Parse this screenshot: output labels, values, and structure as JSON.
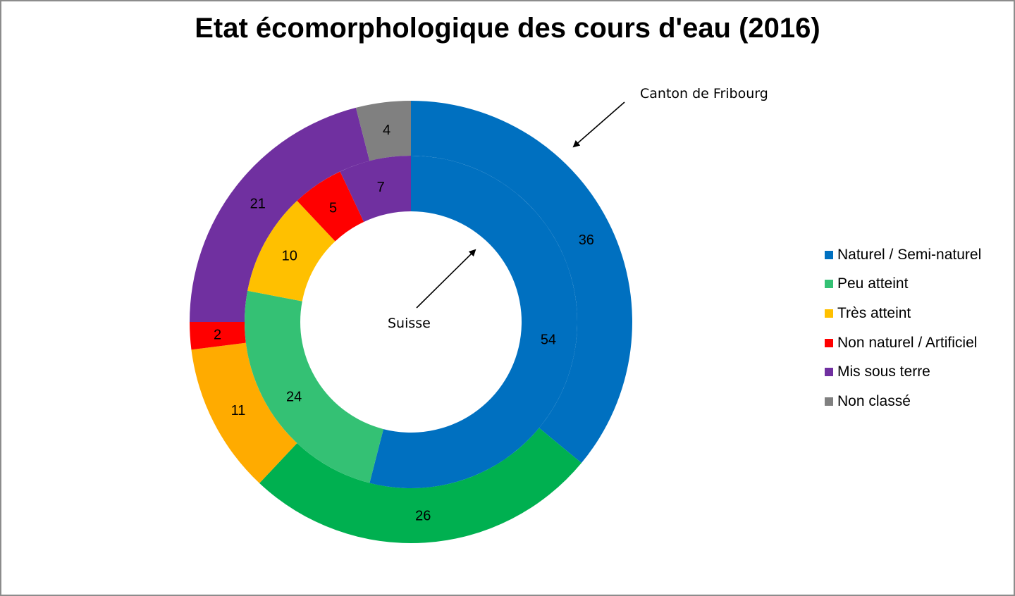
{
  "title": "Etat écomorphologique des cours d'eau (2016)",
  "annotations": {
    "outer": "Canton de Fribourg",
    "inner": "Suisse"
  },
  "legend": [
    {
      "label": "Naturel / Semi-naturel",
      "color": "#0070c0"
    },
    {
      "label": "Peu atteint",
      "color": "#34c174"
    },
    {
      "label": "Très atteint",
      "color": "#ffc000"
    },
    {
      "label": "Non naturel / Artificiel",
      "color": "#ff0000"
    },
    {
      "label": "Mis sous terre",
      "color": "#7030a0"
    },
    {
      "label": "Non classé",
      "color": "#808080"
    }
  ],
  "chart_data": {
    "type": "doughnut",
    "title": "Etat écomorphologique des cours d'eau (2016)",
    "categories": [
      "Naturel / Semi-naturel",
      "Peu atteint",
      "Très atteint",
      "Non naturel / Artificiel",
      "Mis sous terre",
      "Non classé"
    ],
    "series": [
      {
        "name": "Canton de Fribourg",
        "ring": "outer",
        "values": [
          36,
          26,
          11,
          2,
          21,
          4
        ],
        "colors": [
          "#0070c0",
          "#00b050",
          "#ffab00",
          "#ff0000",
          "#7030a0",
          "#808080"
        ]
      },
      {
        "name": "Suisse",
        "ring": "inner",
        "values": [
          54,
          24,
          10,
          5,
          7,
          null
        ],
        "colors": [
          "#0070c0",
          "#34c174",
          "#ffc000",
          "#ff0000",
          "#7030a0",
          "#808080"
        ]
      }
    ],
    "unit": "%",
    "legend_position": "right"
  }
}
